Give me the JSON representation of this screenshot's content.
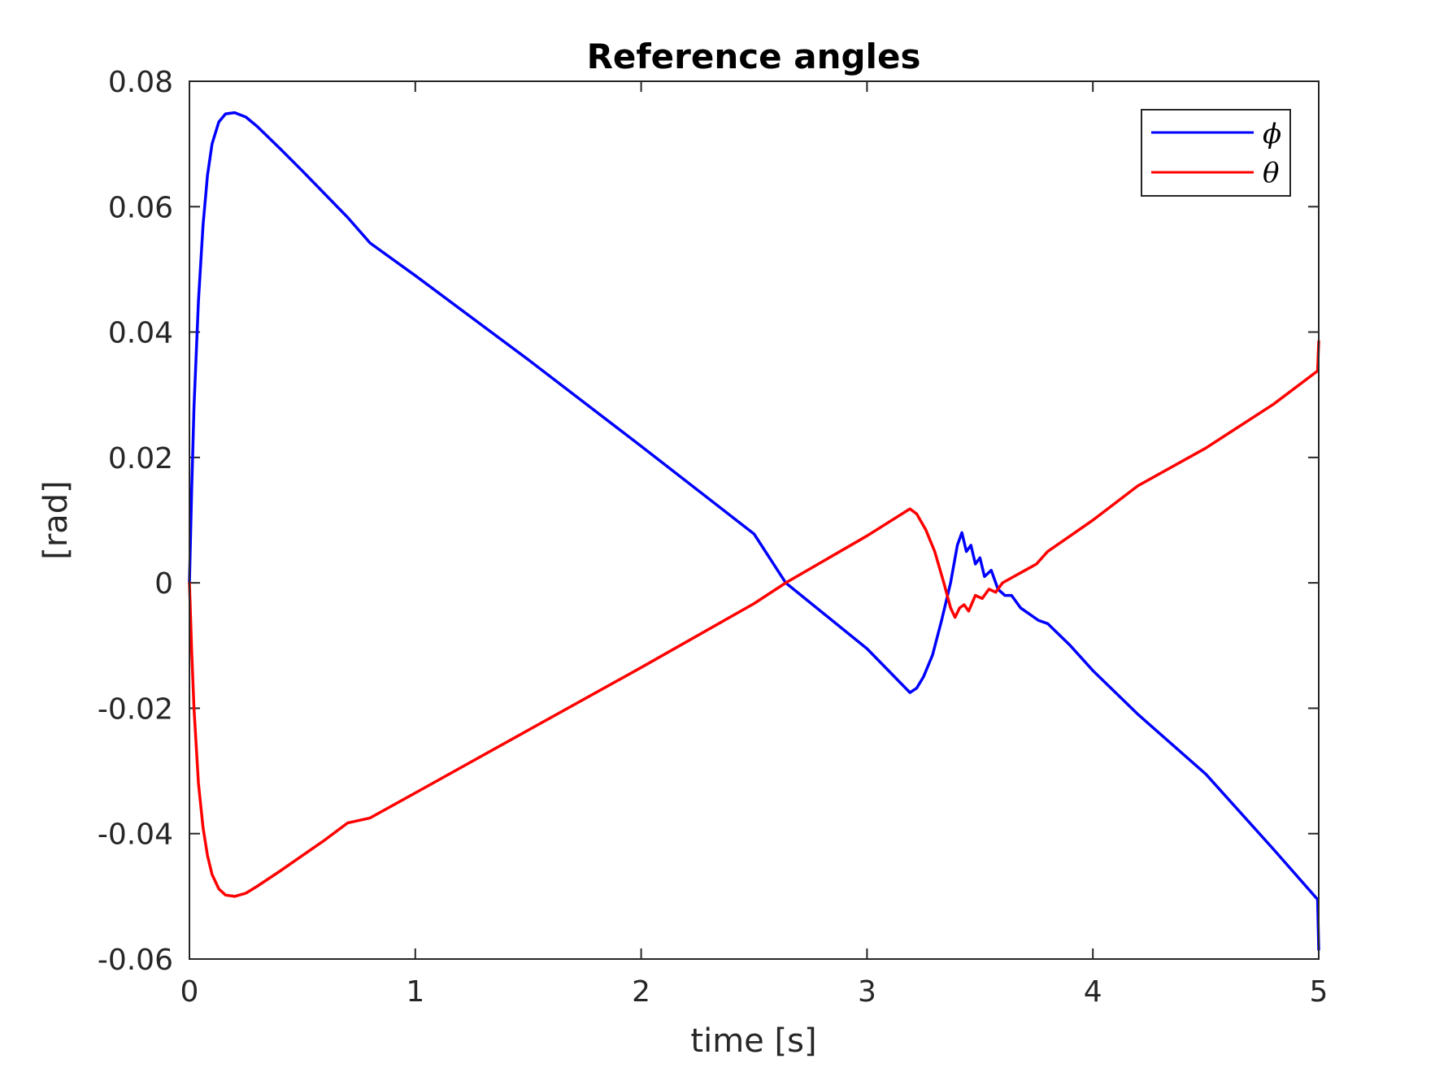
{
  "chart_data": {
    "type": "line",
    "title": "Reference angles",
    "xlabel": "time [s]",
    "ylabel": "[rad]",
    "xlim": [
      0,
      5
    ],
    "ylim": [
      -0.06,
      0.08
    ],
    "xticks": [
      0,
      1,
      2,
      3,
      4,
      5
    ],
    "xtick_labels": [
      "0",
      "1",
      "2",
      "3",
      "4",
      "5"
    ],
    "yticks": [
      -0.06,
      -0.04,
      -0.02,
      0,
      0.02,
      0.04,
      0.06,
      0.08
    ],
    "ytick_labels": [
      "-0.06",
      "-0.04",
      "-0.02",
      "0",
      "0.02",
      "0.04",
      "0.06",
      "0.08"
    ],
    "grid": false,
    "legend": {
      "position": "top-right"
    },
    "series": [
      {
        "name": "ϕ",
        "color": "#0000ff",
        "points": [
          [
            0,
            0
          ],
          [
            0.01,
            0.015
          ],
          [
            0.02,
            0.028
          ],
          [
            0.04,
            0.045
          ],
          [
            0.06,
            0.057
          ],
          [
            0.08,
            0.065
          ],
          [
            0.1,
            0.07
          ],
          [
            0.13,
            0.0735
          ],
          [
            0.16,
            0.0748
          ],
          [
            0.2,
            0.075
          ],
          [
            0.25,
            0.0743
          ],
          [
            0.3,
            0.0728
          ],
          [
            0.4,
            0.0693
          ],
          [
            0.5,
            0.0657
          ],
          [
            0.6,
            0.062
          ],
          [
            0.7,
            0.0583
          ],
          [
            0.8,
            0.0542
          ],
          [
            1.0,
            0.049
          ],
          [
            1.5,
            0.0356
          ],
          [
            2.0,
            0.0218
          ],
          [
            2.5,
            0.0078
          ],
          [
            2.64,
            0.0
          ],
          [
            3.0,
            -0.0105
          ],
          [
            3.19,
            -0.0175
          ],
          [
            3.22,
            -0.0168
          ],
          [
            3.25,
            -0.015
          ],
          [
            3.29,
            -0.0115
          ],
          [
            3.33,
            -0.006
          ],
          [
            3.37,
            0.0
          ],
          [
            3.4,
            0.006
          ],
          [
            3.42,
            0.008
          ],
          [
            3.44,
            0.005
          ],
          [
            3.46,
            0.006
          ],
          [
            3.48,
            0.003
          ],
          [
            3.5,
            0.004
          ],
          [
            3.52,
            0.001
          ],
          [
            3.55,
            0.002
          ],
          [
            3.58,
            -0.001
          ],
          [
            3.61,
            -0.002
          ],
          [
            3.64,
            -0.002
          ],
          [
            3.68,
            -0.004
          ],
          [
            3.72,
            -0.005
          ],
          [
            3.76,
            -0.006
          ],
          [
            3.8,
            -0.0065
          ],
          [
            3.9,
            -0.01
          ],
          [
            4.0,
            -0.014
          ],
          [
            4.2,
            -0.021
          ],
          [
            4.5,
            -0.0305
          ],
          [
            4.8,
            -0.0425
          ],
          [
            4.995,
            -0.0505
          ],
          [
            5.0,
            -0.0585
          ]
        ]
      },
      {
        "name": "θ",
        "color": "#ff0000",
        "points": [
          [
            0,
            0
          ],
          [
            0.01,
            -0.011
          ],
          [
            0.02,
            -0.02
          ],
          [
            0.04,
            -0.032
          ],
          [
            0.06,
            -0.039
          ],
          [
            0.08,
            -0.0435
          ],
          [
            0.1,
            -0.0465
          ],
          [
            0.13,
            -0.0488
          ],
          [
            0.16,
            -0.0498
          ],
          [
            0.2,
            -0.05
          ],
          [
            0.25,
            -0.0495
          ],
          [
            0.3,
            -0.0484
          ],
          [
            0.4,
            -0.046
          ],
          [
            0.5,
            -0.0435
          ],
          [
            0.6,
            -0.041
          ],
          [
            0.7,
            -0.0383
          ],
          [
            0.8,
            -0.0375
          ],
          [
            1.0,
            -0.0335
          ],
          [
            1.5,
            -0.0235
          ],
          [
            2.0,
            -0.0135
          ],
          [
            2.5,
            -0.0033
          ],
          [
            2.64,
            0.0
          ],
          [
            3.0,
            0.0075
          ],
          [
            3.19,
            0.0118
          ],
          [
            3.22,
            0.011
          ],
          [
            3.26,
            0.0085
          ],
          [
            3.3,
            0.005
          ],
          [
            3.34,
            0.0
          ],
          [
            3.37,
            -0.004
          ],
          [
            3.39,
            -0.0055
          ],
          [
            3.41,
            -0.004
          ],
          [
            3.43,
            -0.0035
          ],
          [
            3.45,
            -0.0045
          ],
          [
            3.48,
            -0.002
          ],
          [
            3.51,
            -0.0025
          ],
          [
            3.54,
            -0.001
          ],
          [
            3.57,
            -0.0015
          ],
          [
            3.6,
            0.0
          ],
          [
            3.65,
            0.001
          ],
          [
            3.7,
            0.002
          ],
          [
            3.75,
            0.003
          ],
          [
            3.8,
            0.005
          ],
          [
            3.9,
            0.0075
          ],
          [
            4.0,
            0.01
          ],
          [
            4.2,
            0.0155
          ],
          [
            4.5,
            0.0215
          ],
          [
            4.8,
            0.0285
          ],
          [
            4.995,
            0.0338
          ],
          [
            5.0,
            0.0385
          ]
        ]
      }
    ]
  }
}
